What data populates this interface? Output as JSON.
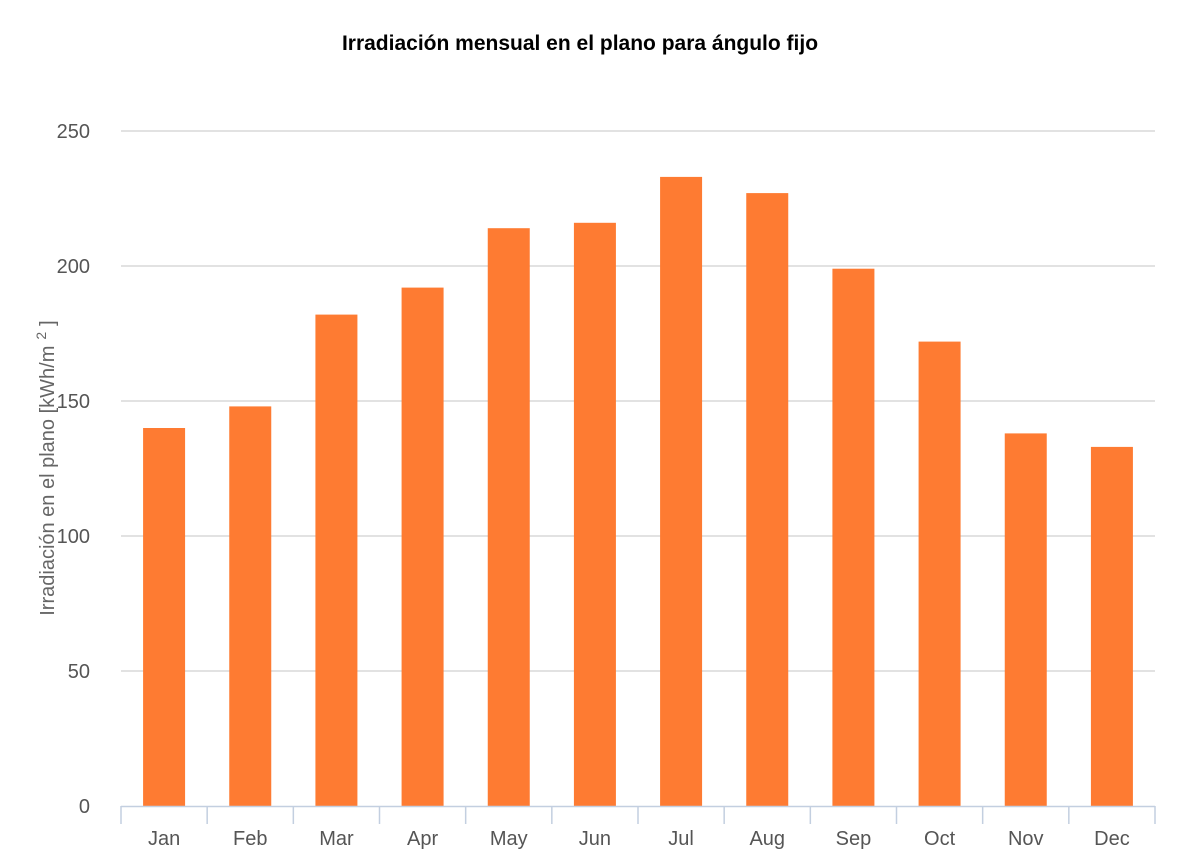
{
  "chart_data": {
    "type": "bar",
    "title": "Irradiación mensual en el plano para ángulo fijo",
    "xlabel": "",
    "ylabel": "Irradiación en el plano [kWh/m",
    "ylabel_sup": "2",
    "ylabel_end": "]",
    "categories": [
      "Jan",
      "Feb",
      "Mar",
      "Apr",
      "May",
      "Jun",
      "Jul",
      "Aug",
      "Sep",
      "Oct",
      "Nov",
      "Dec"
    ],
    "values": [
      140,
      148,
      182,
      192,
      214,
      216,
      233,
      227,
      199,
      172,
      138,
      133
    ],
    "ylim": [
      0,
      250
    ],
    "yticks": [
      0,
      50,
      100,
      150,
      200,
      250
    ],
    "grid": true,
    "bar_color": "#fe7b32"
  }
}
